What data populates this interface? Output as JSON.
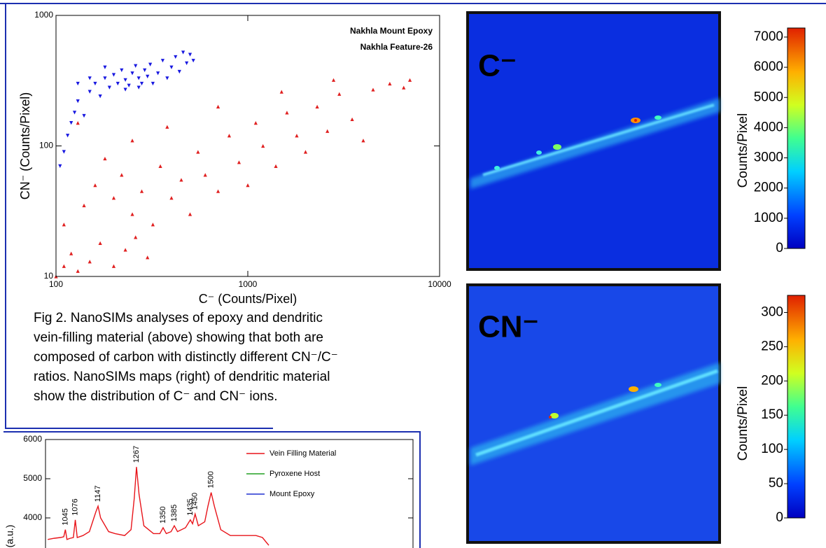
{
  "chart_data": [
    {
      "type": "scatter",
      "x_label": "C⁻ (Counts/Pixel)",
      "y_label": "CN⁻ (Counts/Pixel)",
      "xlim": [
        100,
        10000
      ],
      "ylim": [
        10,
        1000
      ],
      "xticks": [
        100,
        1000,
        10000
      ],
      "yticks": [
        10,
        100,
        1000
      ],
      "log_x": true,
      "log_y": true,
      "legend": "upper right",
      "series": [
        {
          "name": "Nakhla Mount Epoxy",
          "color": "#1818e0",
          "marker": "down-triangle",
          "x": [
            105,
            110,
            115,
            120,
            125,
            130,
            140,
            150,
            160,
            170,
            180,
            190,
            200,
            210,
            220,
            230,
            240,
            250,
            260,
            270,
            280,
            290,
            300,
            310,
            320,
            340,
            360,
            380,
            400,
            420,
            440,
            460,
            480,
            500,
            520,
            180,
            230,
            150,
            130,
            270
          ],
          "values": [
            70,
            90,
            120,
            150,
            180,
            220,
            170,
            260,
            300,
            240,
            330,
            280,
            350,
            300,
            380,
            320,
            290,
            360,
            410,
            330,
            300,
            380,
            340,
            420,
            300,
            360,
            450,
            330,
            400,
            480,
            370,
            520,
            430,
            500,
            450,
            400,
            270,
            330,
            300,
            280
          ]
        },
        {
          "name": "Nakhla Feature-26",
          "color": "#e02020",
          "marker": "up-triangle",
          "x": [
            100,
            110,
            120,
            130,
            150,
            170,
            200,
            230,
            260,
            300,
            110,
            140,
            160,
            180,
            200,
            220,
            250,
            280,
            320,
            350,
            400,
            450,
            500,
            550,
            600,
            700,
            800,
            900,
            1000,
            1100,
            1200,
            1400,
            1600,
            1800,
            2000,
            2300,
            2600,
            3000,
            3500,
            4000,
            4500,
            5500,
            6500,
            7000,
            130,
            250,
            380,
            700,
            1500,
            2800
          ],
          "values": [
            10,
            12,
            15,
            11,
            13,
            18,
            12,
            16,
            20,
            14,
            25,
            35,
            50,
            80,
            40,
            60,
            30,
            45,
            25,
            70,
            40,
            55,
            30,
            90,
            60,
            45,
            120,
            75,
            50,
            150,
            100,
            70,
            180,
            120,
            90,
            200,
            130,
            250,
            160,
            110,
            270,
            300,
            280,
            320,
            150,
            110,
            140,
            200,
            260,
            320
          ]
        }
      ]
    },
    {
      "type": "image",
      "label": "C⁻",
      "colorbar": {
        "label": "Counts/Pixel",
        "lim": [
          0,
          7300
        ],
        "ticks": [
          0,
          1000,
          2000,
          3000,
          4000,
          5000,
          6000,
          7000
        ]
      }
    },
    {
      "type": "image",
      "label": "CN⁻",
      "colorbar": {
        "label": "Counts/Pixel",
        "lim": [
          0,
          325
        ],
        "ticks": [
          0,
          50,
          100,
          150,
          200,
          250,
          300
        ]
      }
    },
    {
      "type": "line",
      "y_label": "(a.u.)",
      "xlim": [
        983,
        2130
      ],
      "ylim": [
        3000,
        6000
      ],
      "yticks": [
        4000,
        5000,
        6000
      ],
      "x": [
        990,
        1010,
        1030,
        1040,
        1045,
        1050,
        1060,
        1070,
        1076,
        1082,
        1100,
        1120,
        1140,
        1147,
        1155,
        1180,
        1200,
        1230,
        1250,
        1260,
        1267,
        1275,
        1290,
        1320,
        1340,
        1350,
        1360,
        1375,
        1385,
        1395,
        1420,
        1435,
        1442,
        1450,
        1460,
        1480,
        1490,
        1500,
        1510,
        1530,
        1560,
        1600,
        1640,
        1660,
        1680
      ],
      "peaks": [
        1045,
        1076,
        1147,
        1267,
        1350,
        1385,
        1435,
        1450,
        1500
      ],
      "series": [
        {
          "name": "Vein Filling Material",
          "color": "#e8141a",
          "values": [
            3450,
            3480,
            3500,
            3520,
            3700,
            3450,
            3480,
            3500,
            3950,
            3500,
            3550,
            3650,
            4150,
            4300,
            4000,
            3650,
            3600,
            3550,
            3700,
            4500,
            5300,
            4600,
            3800,
            3600,
            3600,
            3750,
            3600,
            3650,
            3800,
            3650,
            3750,
            3950,
            3850,
            4100,
            3800,
            3900,
            4300,
            4650,
            4300,
            3700,
            3550,
            3550,
            3550,
            3500,
            3300
          ]
        },
        {
          "name": "Pyroxene Host",
          "color": "#22a022",
          "values": [
            null,
            null,
            null,
            null,
            null,
            null,
            null,
            null,
            null,
            null,
            null,
            null,
            null,
            null,
            null,
            null,
            null,
            null,
            null,
            null,
            null,
            null,
            null,
            null,
            null,
            null,
            null,
            null,
            null,
            null,
            null,
            null,
            null,
            null,
            null,
            null,
            null,
            null,
            null,
            null,
            null,
            null,
            null,
            null,
            null
          ]
        },
        {
          "name": "Mount Epoxy",
          "color": "#2030d0",
          "values": [
            null,
            null,
            null,
            null,
            null,
            null,
            null,
            null,
            null,
            null,
            null,
            null,
            null,
            null,
            null,
            null,
            null,
            null,
            null,
            null,
            null,
            null,
            null,
            null,
            null,
            null,
            null,
            null,
            null,
            null,
            null,
            null,
            null,
            null,
            null,
            null,
            null,
            null,
            null,
            null,
            null,
            null,
            null,
            null,
            null
          ]
        }
      ]
    }
  ],
  "caption": [
    "Fig 2.  NanoSIMs analyses of epoxy and dendritic",
    "vein-filling material (above) showing that both are",
    "composed of carbon with distinctly different CN⁻/C⁻",
    "ratios.  NanoSIMs maps (right)  of dendritic material",
    "show  the distribution of C⁻ and CN⁻ ions."
  ]
}
